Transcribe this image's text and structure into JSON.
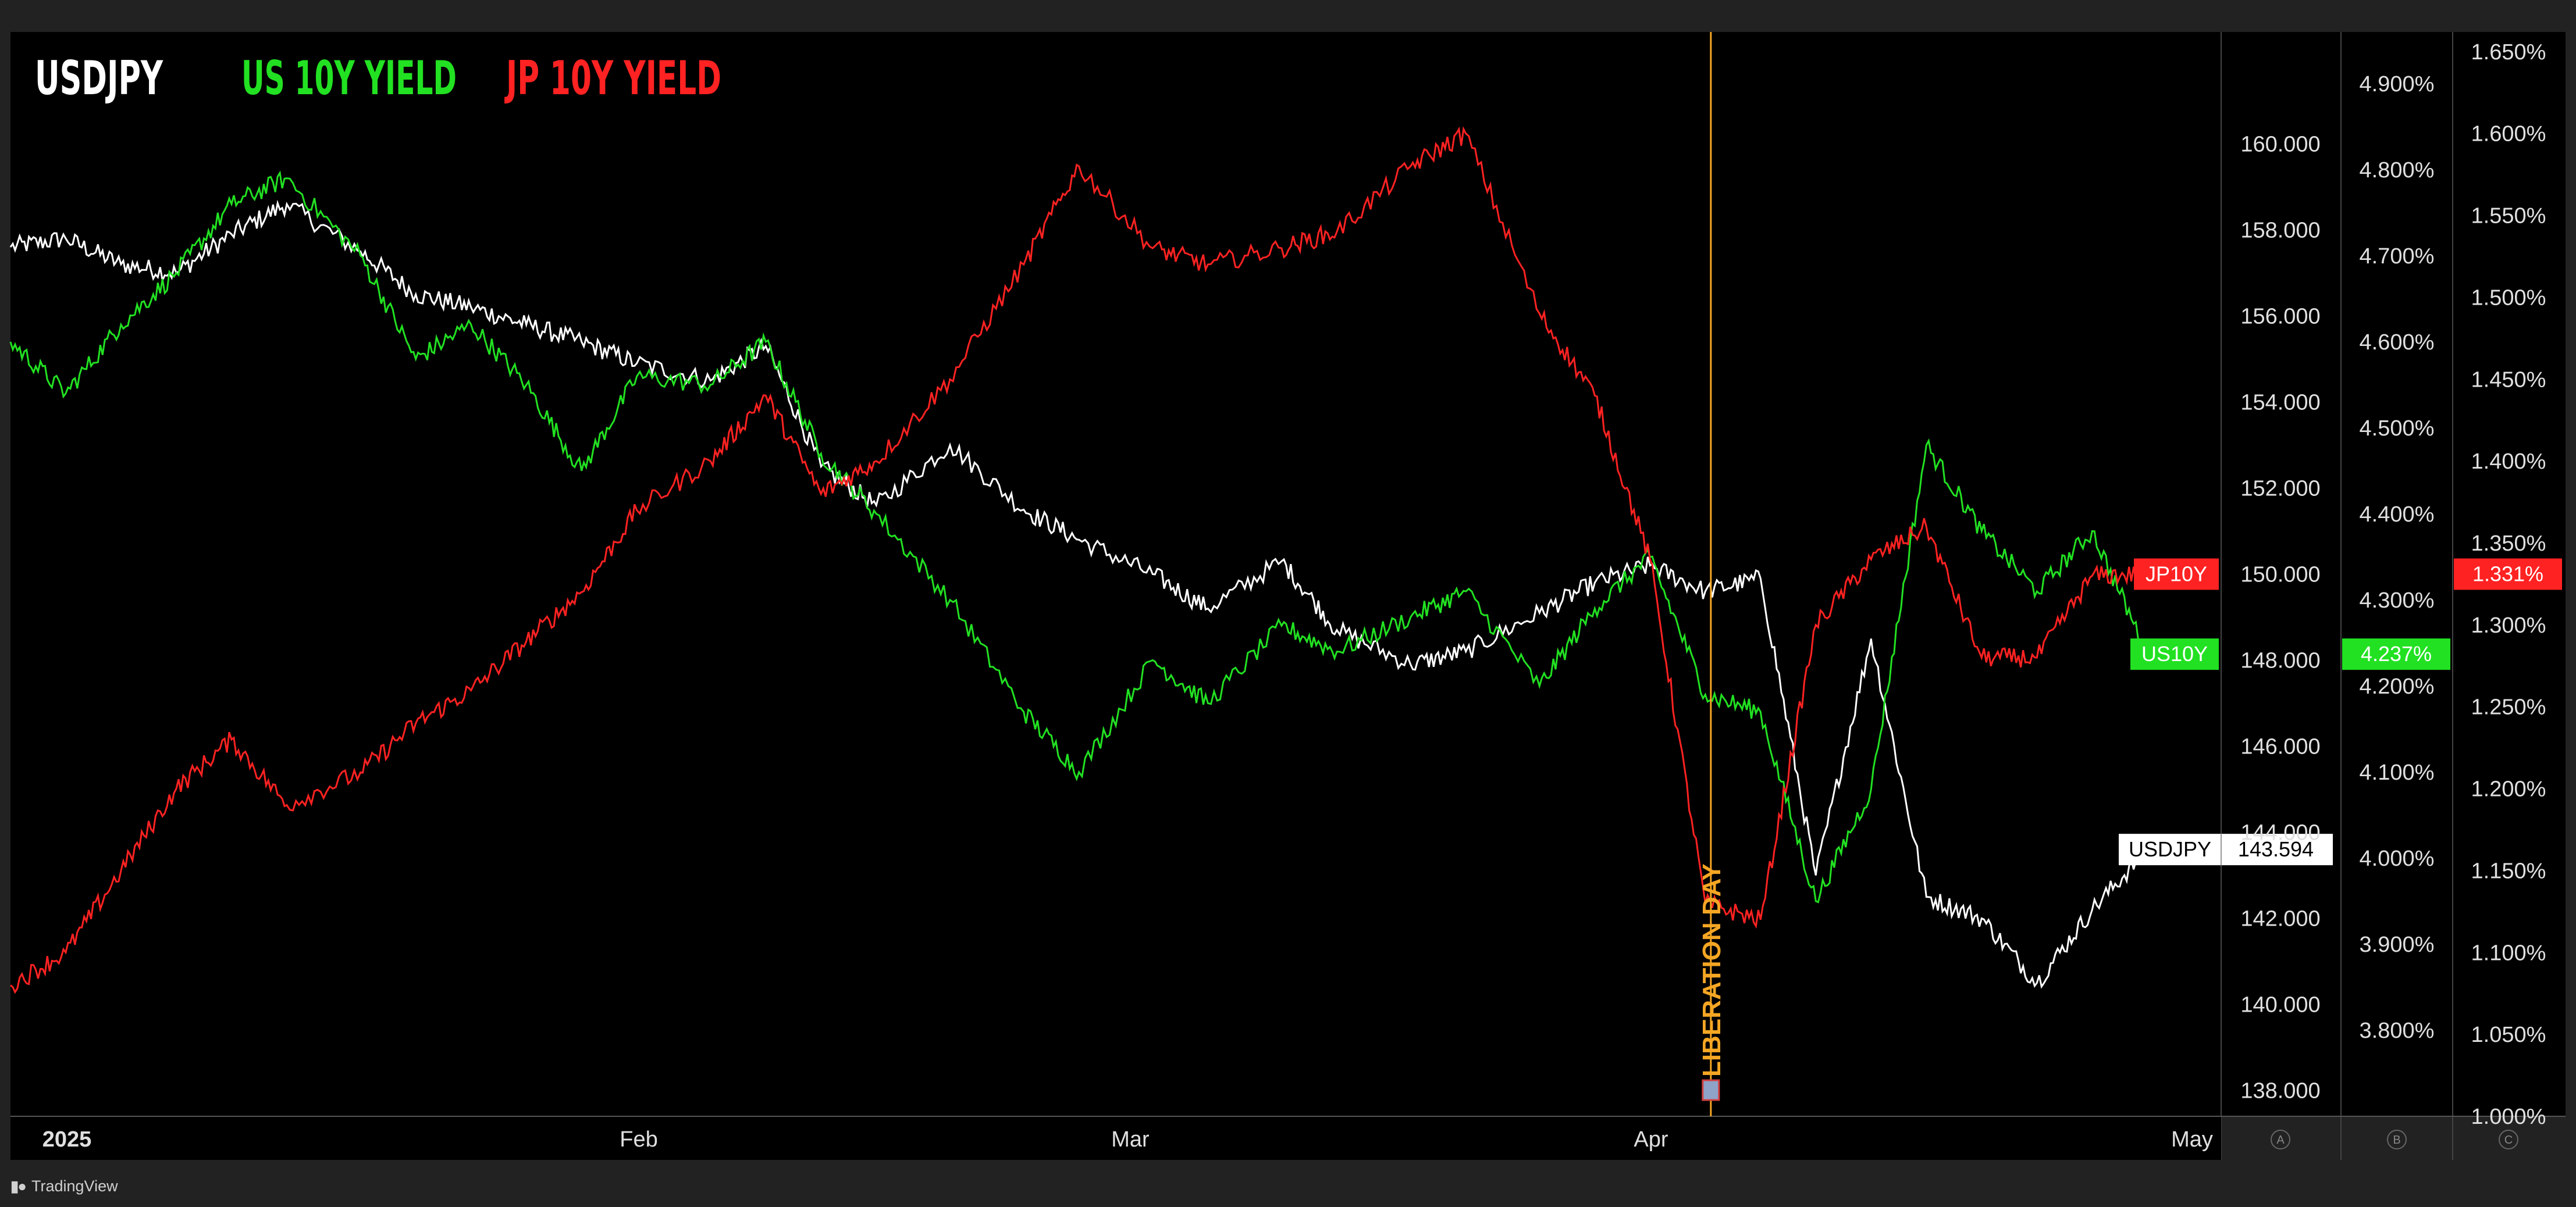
{
  "legend": {
    "items": [
      {
        "label": "USDJPY",
        "color": "#ffffff"
      },
      {
        "label": "US 10Y YIELD",
        "color": "#22e122"
      },
      {
        "label": "JP 10Y YIELD",
        "color": "#ff2222"
      }
    ]
  },
  "footer": {
    "brand": "TradingView"
  },
  "annotation": {
    "label": "LIBERATION DAY",
    "date": "2025-04-03",
    "color": "#f5a623"
  },
  "chart_data": {
    "type": "line",
    "xlabel": "",
    "x_ticks": [
      "2025",
      "Feb",
      "Mar",
      "Apr",
      "May"
    ],
    "scale_labels": [
      "A",
      "B",
      "C"
    ],
    "axes": {
      "usdjpy": {
        "ticks": [
          "160.000",
          "158.000",
          "156.000",
          "154.000",
          "152.000",
          "150.000",
          "148.000",
          "146.000",
          "144.000",
          "142.000",
          "140.000",
          "138.000"
        ],
        "ylim": [
          137.4,
          162.6
        ]
      },
      "us10y": {
        "ticks": [
          "4.900%",
          "4.800%",
          "4.700%",
          "4.600%",
          "4.500%",
          "4.400%",
          "4.300%",
          "4.200%",
          "4.100%",
          "4.000%",
          "3.900%",
          "3.800%"
        ],
        "ylim": [
          3.7,
          4.96
        ]
      },
      "jp10y": {
        "ticks": [
          "1.650%",
          "1.600%",
          "1.550%",
          "1.500%",
          "1.450%",
          "1.400%",
          "1.350%",
          "1.300%",
          "1.250%",
          "1.200%",
          "1.150%",
          "1.100%",
          "1.050%",
          "1.000%"
        ],
        "ylim": [
          1.0,
          1.662
        ]
      }
    },
    "series": [
      {
        "name": "USDJPY",
        "axis": "usdjpy",
        "color": "#ffffff",
        "x": [
          0,
          3,
          6,
          9,
          12,
          15,
          19,
          22,
          25,
          28,
          31,
          34,
          38,
          41,
          44,
          47,
          51,
          55,
          58,
          62,
          65,
          69,
          72,
          76,
          79,
          83,
          86,
          89,
          92,
          95,
          98,
          101,
          104,
          107,
          110,
          113,
          116
        ],
        "y": [
          157.6,
          157.8,
          157.2,
          157.0,
          157.9,
          158.6,
          157.5,
          156.5,
          156.2,
          155.8,
          155.4,
          154.9,
          154.5,
          155.3,
          152.5,
          151.6,
          153.0,
          151.5,
          150.8,
          150.0,
          149.2,
          150.3,
          148.7,
          147.9,
          148.2,
          149.1,
          149.8,
          150.2,
          149.6,
          149.9,
          143.0,
          148.5,
          142.5,
          142.0,
          140.5,
          142.2,
          143.6
        ],
        "last_label": "USDJPY",
        "last_value": "143.594"
      },
      {
        "name": "US10Y",
        "axis": "us10y",
        "color": "#22e122",
        "x": [
          0,
          3,
          6,
          9,
          12,
          15,
          19,
          22,
          25,
          28,
          31,
          34,
          38,
          41,
          44,
          47,
          51,
          55,
          58,
          62,
          65,
          69,
          72,
          76,
          79,
          83,
          86,
          89,
          92,
          95,
          98,
          101,
          104,
          107,
          110,
          113,
          116
        ],
        "y": [
          4.6,
          4.54,
          4.62,
          4.68,
          4.76,
          4.79,
          4.7,
          4.58,
          4.62,
          4.55,
          4.45,
          4.56,
          4.55,
          4.6,
          4.47,
          4.4,
          4.3,
          4.17,
          4.1,
          4.23,
          4.18,
          4.27,
          4.24,
          4.28,
          4.31,
          4.2,
          4.29,
          4.35,
          4.19,
          4.17,
          3.95,
          4.08,
          4.48,
          4.38,
          4.31,
          4.38,
          4.237
        ],
        "last_label": "US10Y",
        "last_value": "4.237%"
      },
      {
        "name": "JP10Y",
        "axis": "jp10y",
        "color": "#ff2222",
        "x": [
          0,
          3,
          6,
          9,
          12,
          15,
          19,
          22,
          25,
          28,
          31,
          34,
          38,
          41,
          44,
          47,
          51,
          55,
          58,
          62,
          65,
          69,
          72,
          76,
          79,
          83,
          86,
          89,
          92,
          95,
          98,
          101,
          104,
          107,
          110,
          113,
          116
        ],
        "y": [
          1.08,
          1.1,
          1.15,
          1.2,
          1.23,
          1.19,
          1.21,
          1.24,
          1.26,
          1.29,
          1.32,
          1.37,
          1.4,
          1.44,
          1.38,
          1.4,
          1.45,
          1.52,
          1.58,
          1.53,
          1.52,
          1.53,
          1.54,
          1.58,
          1.6,
          1.49,
          1.44,
          1.34,
          1.13,
          1.12,
          1.3,
          1.34,
          1.36,
          1.28,
          1.28,
          1.33,
          1.331
        ],
        "last_label": "JP10Y",
        "last_value": "1.331%"
      }
    ]
  }
}
